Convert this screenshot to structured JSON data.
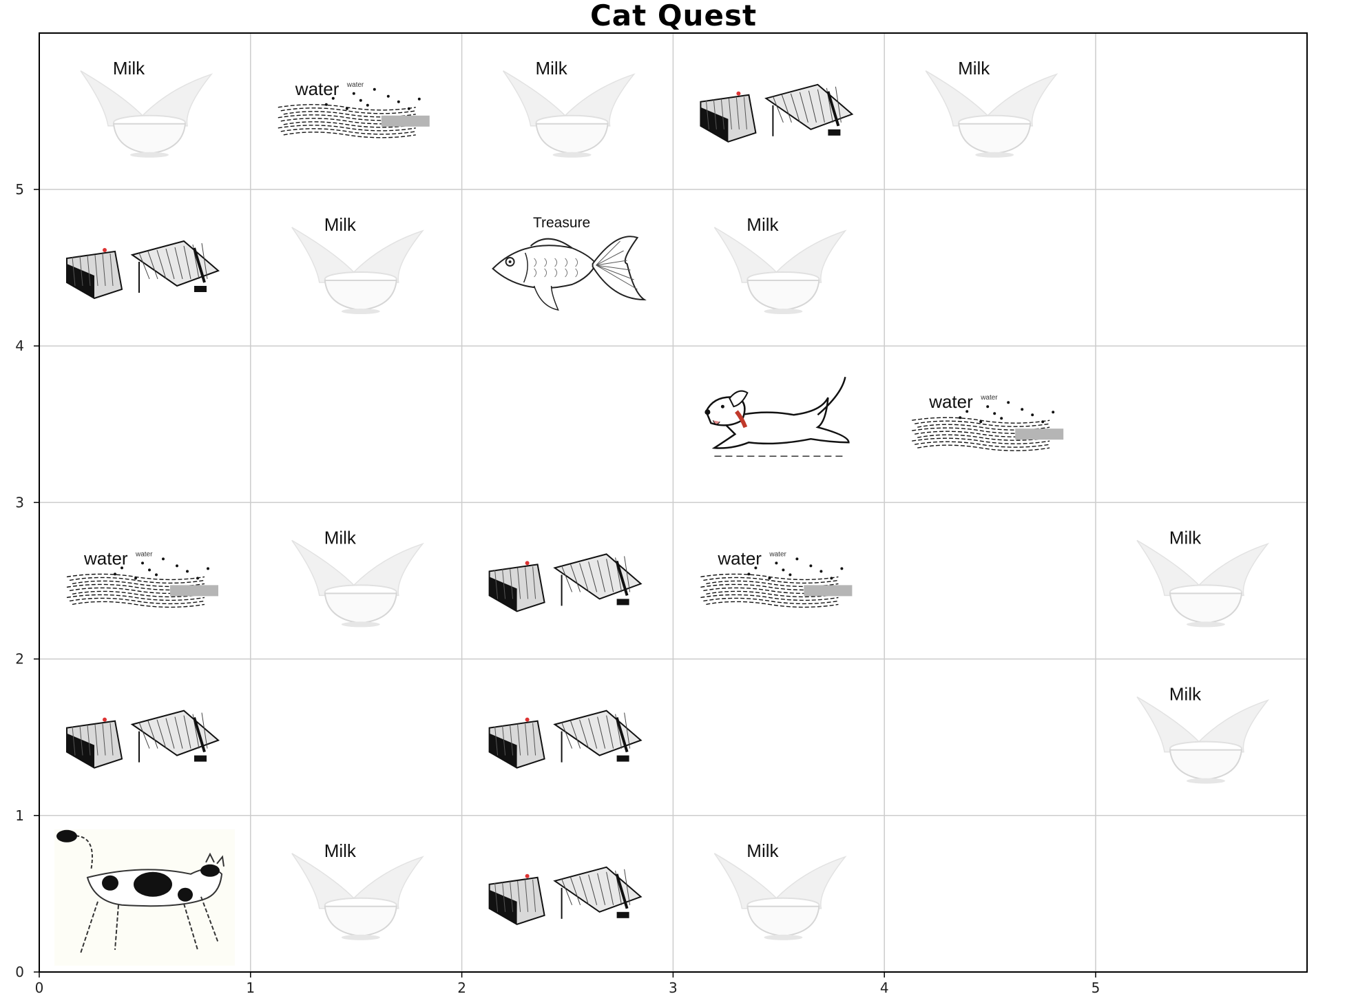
{
  "title": "Cat Quest",
  "grid": {
    "cols": 6,
    "rows": 6,
    "x_ticks": [
      "0",
      "1",
      "2",
      "3",
      "4",
      "5"
    ],
    "y_ticks": [
      "0",
      "1",
      "2",
      "3",
      "4",
      "5"
    ]
  },
  "labels": {
    "milk": "Milk",
    "water": "water",
    "water_small": "water",
    "treasure": "Treasure"
  },
  "cells": [
    {
      "col": 0,
      "row": 5,
      "type": "milk"
    },
    {
      "col": 1,
      "row": 5,
      "type": "water"
    },
    {
      "col": 2,
      "row": 5,
      "type": "milk"
    },
    {
      "col": 3,
      "row": 5,
      "type": "trap"
    },
    {
      "col": 4,
      "row": 5,
      "type": "milk"
    },
    {
      "col": 0,
      "row": 4,
      "type": "trap"
    },
    {
      "col": 1,
      "row": 4,
      "type": "milk"
    },
    {
      "col": 2,
      "row": 4,
      "type": "treasure"
    },
    {
      "col": 3,
      "row": 4,
      "type": "milk"
    },
    {
      "col": 3,
      "row": 3,
      "type": "dog"
    },
    {
      "col": 4,
      "row": 3,
      "type": "water"
    },
    {
      "col": 0,
      "row": 2,
      "type": "water"
    },
    {
      "col": 1,
      "row": 2,
      "type": "milk"
    },
    {
      "col": 2,
      "row": 2,
      "type": "trap"
    },
    {
      "col": 3,
      "row": 2,
      "type": "water"
    },
    {
      "col": 5,
      "row": 2,
      "type": "milk"
    },
    {
      "col": 0,
      "row": 1,
      "type": "trap"
    },
    {
      "col": 2,
      "row": 1,
      "type": "trap"
    },
    {
      "col": 5,
      "row": 1,
      "type": "milk"
    },
    {
      "col": 0,
      "row": 0,
      "type": "cat"
    },
    {
      "col": 1,
      "row": 0,
      "type": "milk"
    },
    {
      "col": 2,
      "row": 0,
      "type": "trap"
    },
    {
      "col": 3,
      "row": 0,
      "type": "milk"
    }
  ],
  "icons": {
    "milk": "milk-bowl-icon",
    "water": "water-splash-icon",
    "trap": "cage-trap-icon",
    "treasure": "goldfish-icon",
    "dog": "dog-icon",
    "cat": "cat-icon"
  },
  "colors": {
    "grid": "#cccccc",
    "frame": "#000000",
    "dog_collar": "#c0392b"
  }
}
